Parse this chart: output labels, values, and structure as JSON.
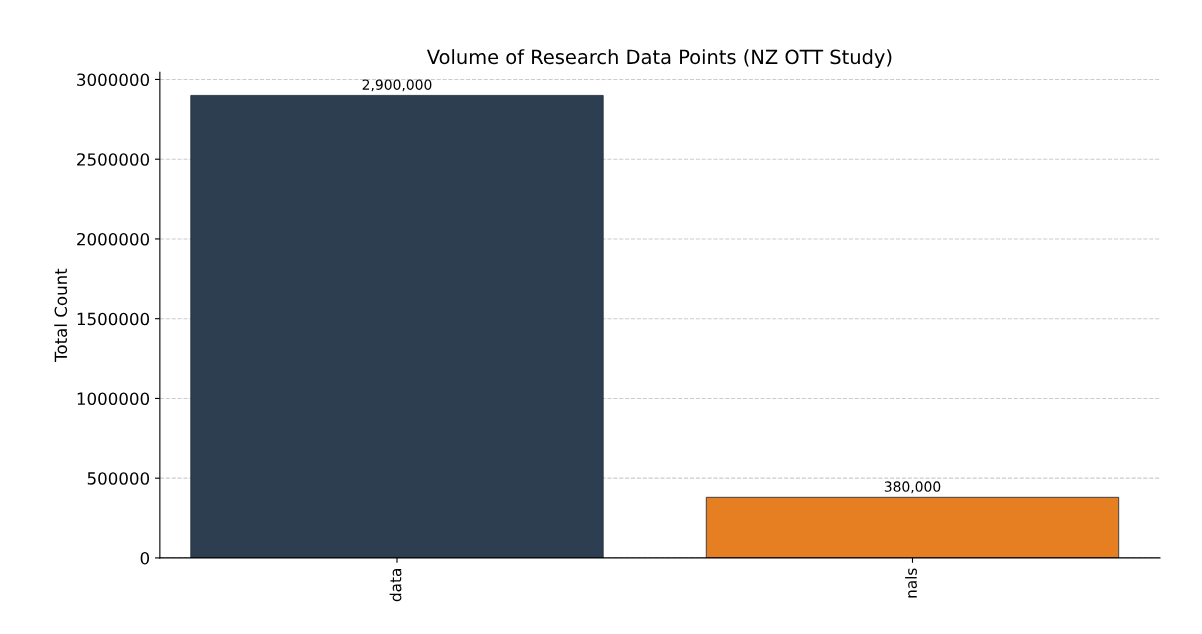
{
  "chart_data": {
    "type": "bar",
    "title": "Volume of Research Data Points (NZ OTT Study)",
    "ylabel": "Total Count",
    "categories": [
      "data",
      "nals"
    ],
    "values": [
      2900000,
      380000
    ],
    "colors": [
      "#2c3e50",
      "#e67e22"
    ],
    "value_labels": [
      "2,900,000",
      "380,000"
    ],
    "ylim": [
      0,
      3045000
    ],
    "yticks": [
      0,
      500000,
      1000000,
      1500000,
      2000000,
      2500000,
      3000000
    ],
    "grid": "y"
  }
}
